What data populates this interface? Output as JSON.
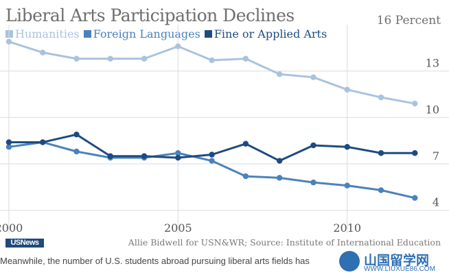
{
  "chart_data": {
    "type": "line",
    "title": "Liberal Arts Participation Declines",
    "unit_label": "16 Percent",
    "x": [
      2000,
      2001,
      2002,
      2003,
      2004,
      2005,
      2006,
      2007,
      2008,
      2009,
      2010,
      2011,
      2012
    ],
    "x_ticks": [
      2000,
      2005,
      2010
    ],
    "x_tick_labels": [
      "2000",
      "2005",
      "2010"
    ],
    "y_ticks": [
      4,
      7,
      10,
      13
    ],
    "y_tick_labels": [
      "4",
      "7",
      "10",
      "13"
    ],
    "ylim": [
      3.5,
      16
    ],
    "xlim": [
      1999.9,
      2012.4
    ],
    "grid": true,
    "legend_position": "top-left",
    "series": [
      {
        "name": "Humanities",
        "color": "#a9c3df",
        "values": [
          14.9,
          14.2,
          13.8,
          13.8,
          13.8,
          14.6,
          13.7,
          13.8,
          12.8,
          12.6,
          11.8,
          11.3,
          10.9
        ]
      },
      {
        "name": "Foreign Languages",
        "color": "#4a82bd",
        "values": [
          8.1,
          8.4,
          7.8,
          7.4,
          7.4,
          7.7,
          7.2,
          6.2,
          6.1,
          5.8,
          5.6,
          5.3,
          4.8
        ]
      },
      {
        "name": "Fine or Applied Arts",
        "color": "#1d4b80",
        "values": [
          8.4,
          8.4,
          8.9,
          7.5,
          7.5,
          7.4,
          7.6,
          8.3,
          7.2,
          8.2,
          8.1,
          7.7,
          7.7
        ]
      }
    ]
  },
  "source": "Allie Bidwell for USN&WR; Source: Institute of International Education",
  "logo_text": "USNews",
  "caption": "Meanwhile, the number of U.S. students abroad pursuing liberal arts fields has",
  "watermark": {
    "text": "山国留学网",
    "url": "WWW.LIUXUE86.COM"
  }
}
